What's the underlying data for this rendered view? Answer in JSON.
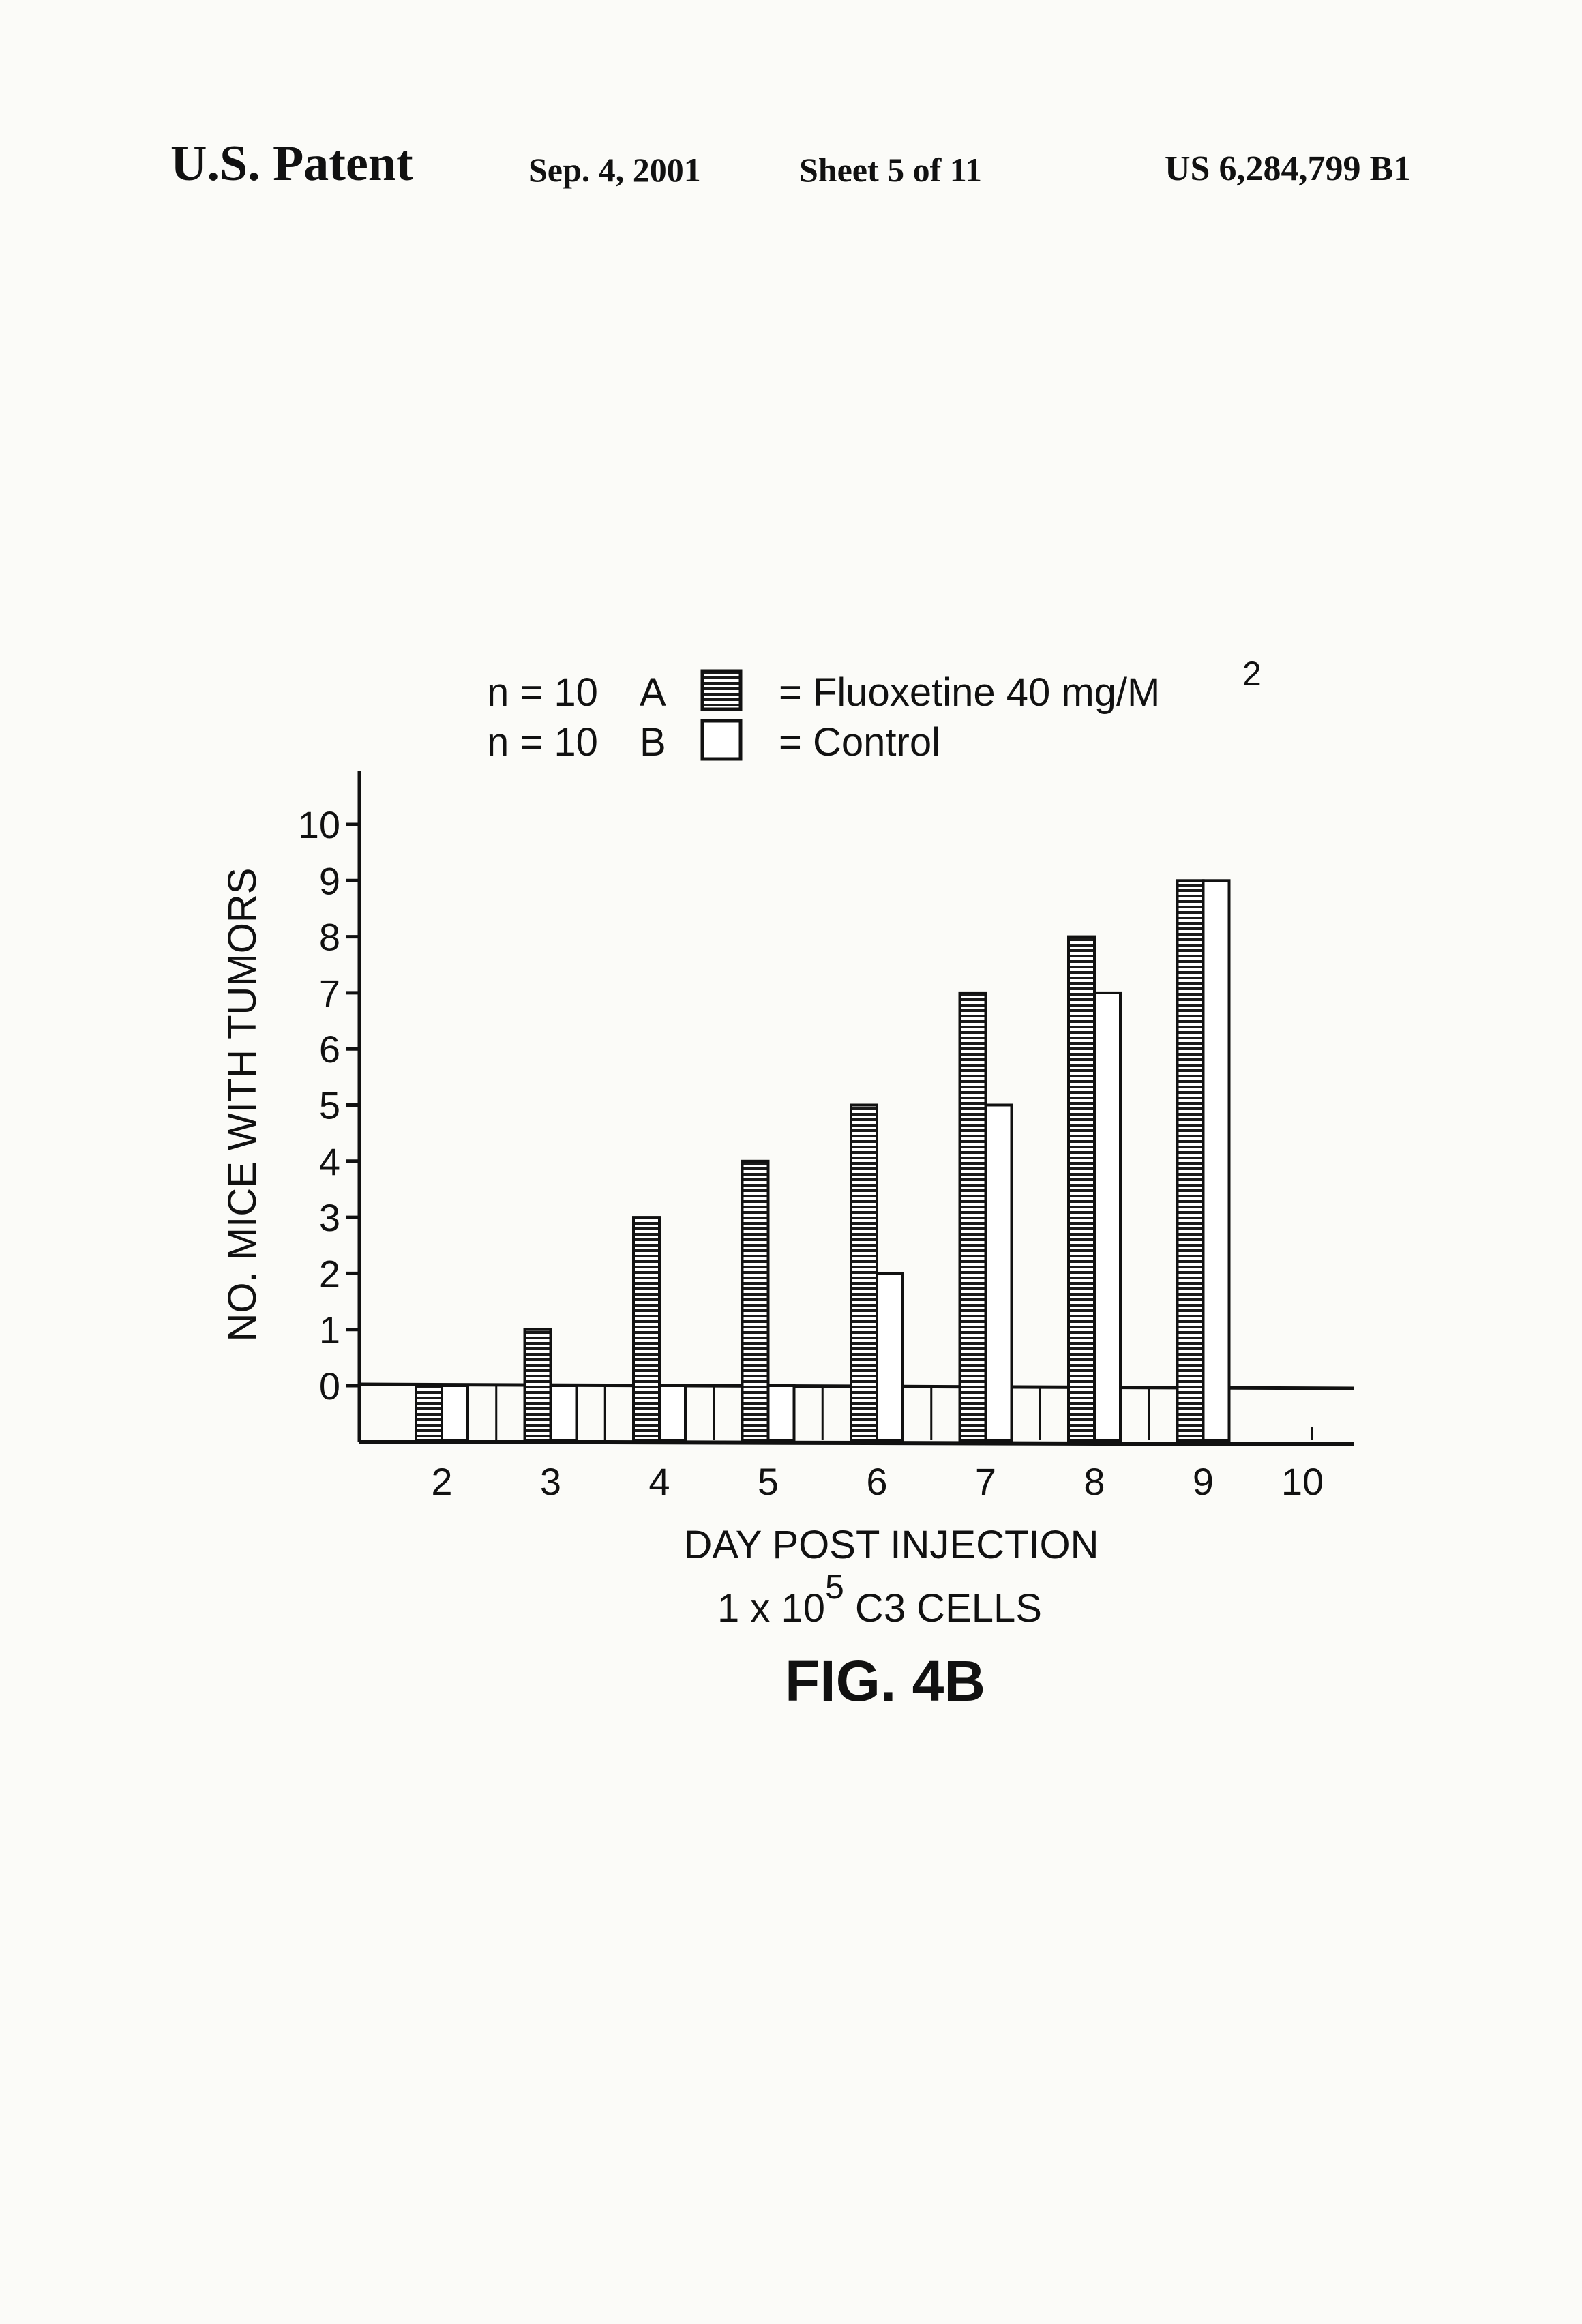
{
  "header": {
    "patent_label": "U.S. Patent",
    "date": "Sep. 4, 2001",
    "sheet": "Sheet 5 of 11",
    "patent_number": "US 6,284,799 B1"
  },
  "legend": {
    "row_a": {
      "n": "n = 10",
      "letter": "A",
      "label": "= Fluoxetine  40 mg/M",
      "superscript": "2"
    },
    "row_b": {
      "n": "n = 10",
      "letter": "B",
      "label": "= Control"
    }
  },
  "figure_label": "FIG. 4B",
  "chart_data": {
    "type": "bar",
    "categories": [
      "2",
      "3",
      "4",
      "5",
      "6",
      "7",
      "8",
      "9",
      "10"
    ],
    "series": [
      {
        "key": "A",
        "values": [
          0,
          1,
          3,
          4,
          5,
          7,
          8,
          9,
          null
        ],
        "pattern": "horizontal-hatch"
      },
      {
        "key": "B",
        "values": [
          0,
          0,
          0,
          0,
          2,
          5,
          7,
          9,
          null
        ],
        "pattern": "white"
      }
    ],
    "ylabel": "NO. MICE WITH TUMORS",
    "xlabel": "DAY POST INJECTION",
    "xlabel2_base": "1 x 10",
    "xlabel2_sup": "5",
    "xlabel2_rest": " C3 CELLS",
    "yticks": [
      0,
      1,
      2,
      3,
      4,
      5,
      6,
      7,
      8,
      9,
      10
    ],
    "ylim": [
      0,
      10
    ],
    "grid": false,
    "legend_position": "top"
  }
}
